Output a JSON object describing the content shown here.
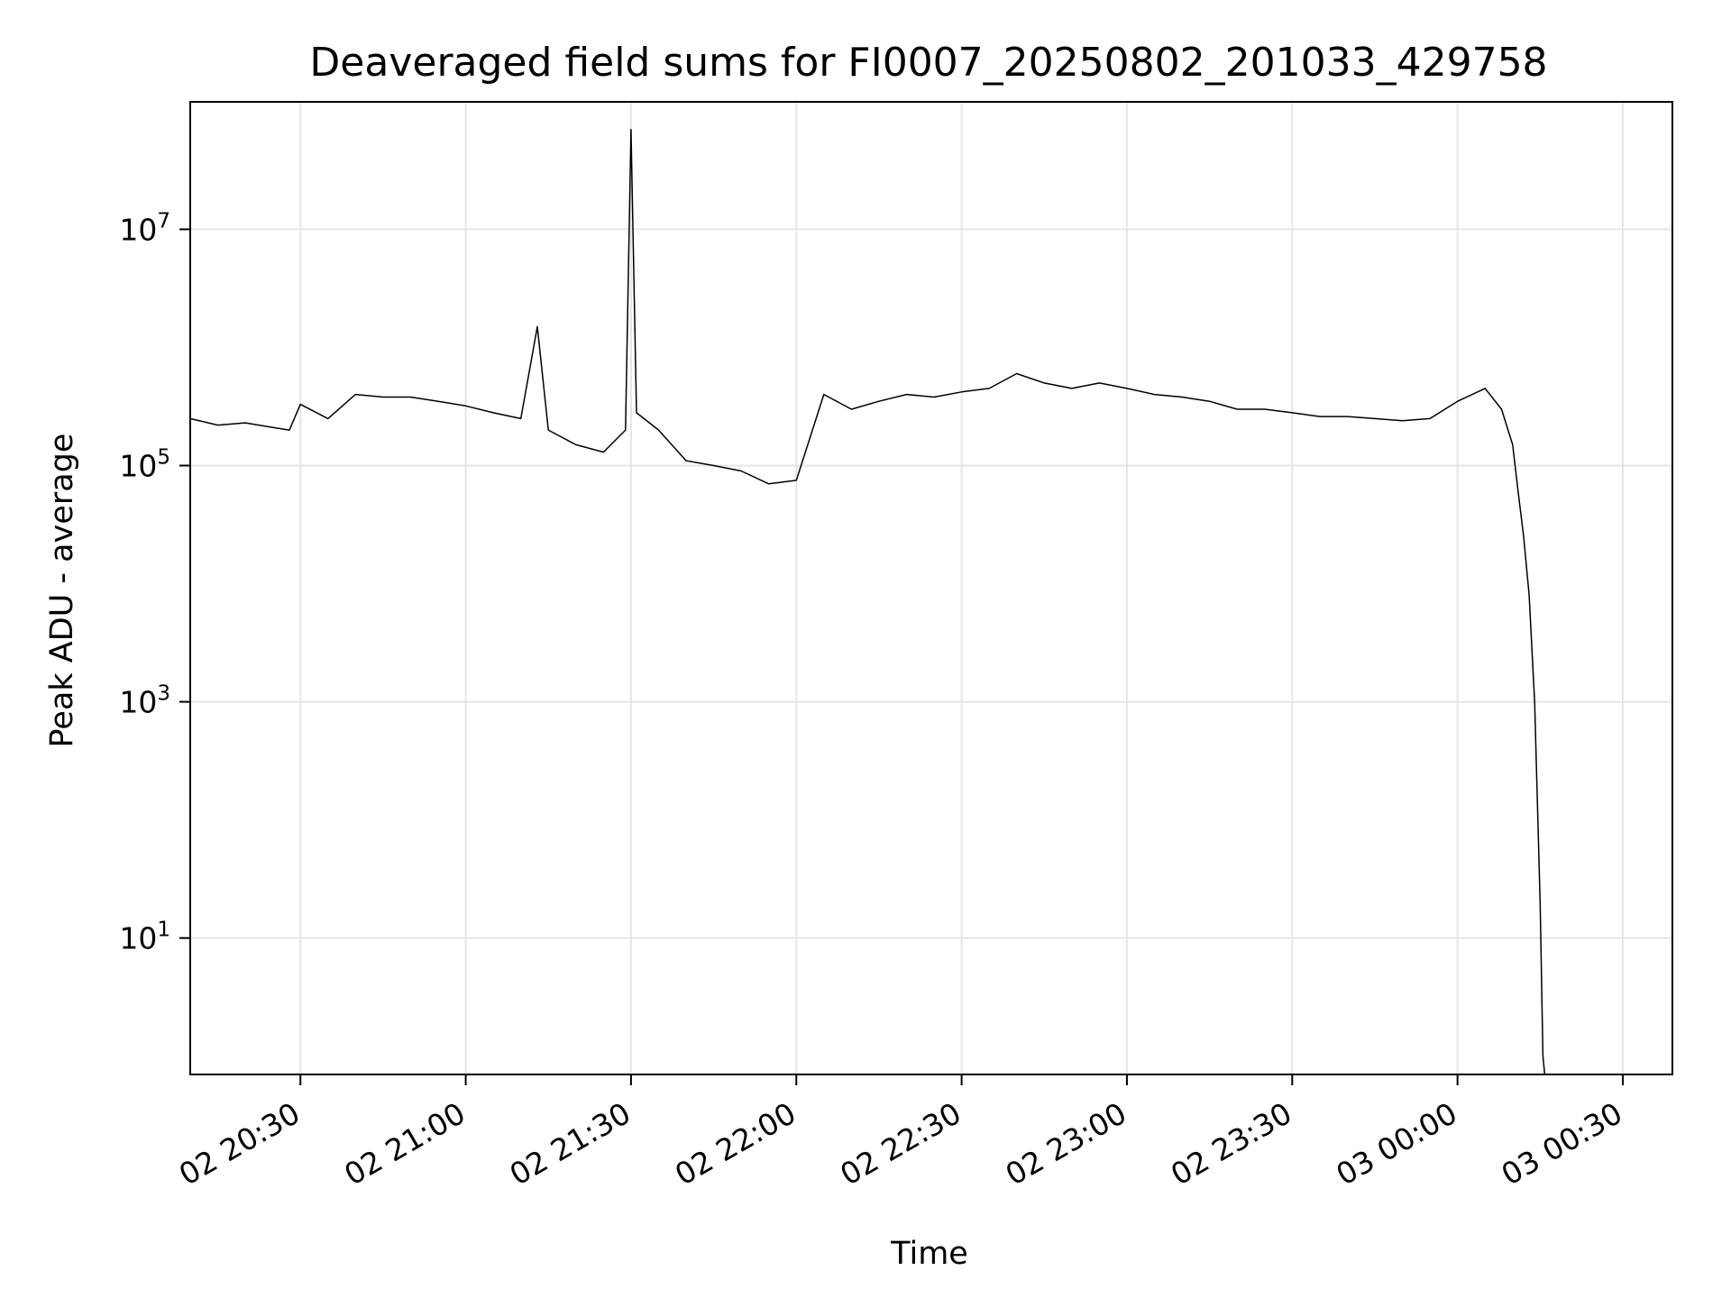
{
  "chart_data": {
    "type": "line",
    "title": "Deaveraged field sums for FI0007_20250802_201033_429758",
    "xlabel": "Time",
    "ylabel": "Peak ADU - average",
    "yscale": "log",
    "grid": true,
    "legend": "none",
    "line_color": "#000000",
    "grid_color": "#e5e5e5",
    "xlim": [
      "2025-08-02 20:10",
      "2025-08-03 00:39"
    ],
    "ylim": [
      0.7,
      120000000
    ],
    "x_ticks": [
      {
        "value": "2025-08-02 20:30",
        "label": "02 20:30"
      },
      {
        "value": "2025-08-02 21:00",
        "label": "02 21:00"
      },
      {
        "value": "2025-08-02 21:30",
        "label": "02 21:30"
      },
      {
        "value": "2025-08-02 22:00",
        "label": "02 22:00"
      },
      {
        "value": "2025-08-02 22:30",
        "label": "02 22:30"
      },
      {
        "value": "2025-08-02 23:00",
        "label": "02 23:00"
      },
      {
        "value": "2025-08-02 23:30",
        "label": "02 23:30"
      },
      {
        "value": "2025-08-03 00:00",
        "label": "03 00:00"
      },
      {
        "value": "2025-08-03 00:30",
        "label": "03 00:30"
      }
    ],
    "y_ticks": [
      {
        "value": 10,
        "base": "10",
        "exp": "1"
      },
      {
        "value": 1000,
        "base": "10",
        "exp": "3"
      },
      {
        "value": 100000,
        "base": "10",
        "exp": "5"
      },
      {
        "value": 10000000,
        "base": "10",
        "exp": "7"
      }
    ],
    "series": [
      {
        "x": [
          "2025-08-02 20:10",
          "2025-08-02 20:15",
          "2025-08-02 20:20",
          "2025-08-02 20:25",
          "2025-08-02 20:28",
          "2025-08-02 20:30",
          "2025-08-02 20:35",
          "2025-08-02 20:40",
          "2025-08-02 20:45",
          "2025-08-02 20:50",
          "2025-08-02 20:55",
          "2025-08-02 21:00",
          "2025-08-02 21:05",
          "2025-08-02 21:10",
          "2025-08-02 21:13",
          "2025-08-02 21:15",
          "2025-08-02 21:20",
          "2025-08-02 21:25",
          "2025-08-02 21:29",
          "2025-08-02 21:30",
          "2025-08-02 21:31",
          "2025-08-02 21:35",
          "2025-08-02 21:40",
          "2025-08-02 21:45",
          "2025-08-02 21:50",
          "2025-08-02 21:55",
          "2025-08-02 22:00",
          "2025-08-02 22:05",
          "2025-08-02 22:10",
          "2025-08-02 22:15",
          "2025-08-02 22:20",
          "2025-08-02 22:25",
          "2025-08-02 22:30",
          "2025-08-02 22:35",
          "2025-08-02 22:40",
          "2025-08-02 22:45",
          "2025-08-02 22:50",
          "2025-08-02 22:55",
          "2025-08-02 23:00",
          "2025-08-02 23:05",
          "2025-08-02 23:10",
          "2025-08-02 23:15",
          "2025-08-02 23:20",
          "2025-08-02 23:25",
          "2025-08-02 23:30",
          "2025-08-02 23:35",
          "2025-08-02 23:40",
          "2025-08-02 23:45",
          "2025-08-02 23:50",
          "2025-08-02 23:55",
          "2025-08-03 00:00",
          "2025-08-03 00:05",
          "2025-08-03 00:08",
          "2025-08-03 00:10",
          "2025-08-03 00:11",
          "2025-08-03 00:12",
          "2025-08-03 00:13",
          "2025-08-03 00:14",
          "2025-08-03 00:15",
          "2025-08-03 00:15:30",
          "2025-08-03 00:15:50"
        ],
        "y": [
          250000,
          220000,
          230000,
          210000,
          200000,
          330000,
          250000,
          400000,
          380000,
          380000,
          350000,
          320000,
          280000,
          250000,
          1500000,
          200000,
          150000,
          130000,
          200000,
          70000000,
          280000,
          200000,
          110000,
          100000,
          90000,
          70000,
          75000,
          400000,
          300000,
          350000,
          400000,
          380000,
          420000,
          450000,
          600000,
          500000,
          450000,
          500000,
          450000,
          400000,
          380000,
          350000,
          300000,
          300000,
          280000,
          260000,
          260000,
          250000,
          240000,
          250000,
          350000,
          450000,
          300000,
          150000,
          60000,
          25000,
          8000,
          1000,
          20,
          1,
          0.7
        ]
      }
    ]
  }
}
